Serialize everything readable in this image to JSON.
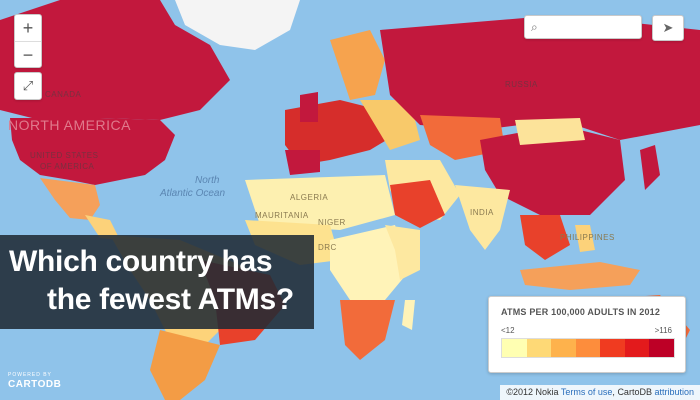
{
  "headline": {
    "line1": "Which country has",
    "line2": "the fewest ATMs?"
  },
  "legend": {
    "title": "ATMS PER 100,000 ADULTS IN 2012",
    "min_label": "<12",
    "max_label": ">116",
    "colors": [
      "#ffffb2",
      "#fed976",
      "#feb24c",
      "#fd8d3c",
      "#f03b20",
      "#e31a1c",
      "#bd0026"
    ]
  },
  "controls": {
    "zoom_in": "+",
    "zoom_out": "−",
    "search_icon": "magnifier-icon",
    "share_icon": "share-arrow-icon",
    "fullscreen_icon": "fullscreen-icon"
  },
  "map_labels": {
    "canada": "CANADA",
    "north_america": "NORTH AMERICA",
    "usa_line1": "UNITED STATES",
    "usa_line2": "OF AMERICA",
    "russia": "RUSSIA",
    "ocean_line1": "North",
    "ocean_line2": "Atlantic Ocean",
    "mauritania": "MAURITANIA",
    "algeria": "ALGERIA",
    "niger": "NIGER",
    "india": "INDIA",
    "philippines": "PHILIPPINES",
    "drc": "DRC"
  },
  "branding": {
    "powered_by": "POWERED BY",
    "name": "CARTODB"
  },
  "attribution": {
    "prefix": "©2012 Nokia",
    "terms": "Terms of use",
    "separator": ",",
    "cartodb": "CartoDB",
    "attribution_link": "attribution"
  },
  "colors": {
    "ocean": "#8fc3ea",
    "headline_bg": "#202a34"
  }
}
